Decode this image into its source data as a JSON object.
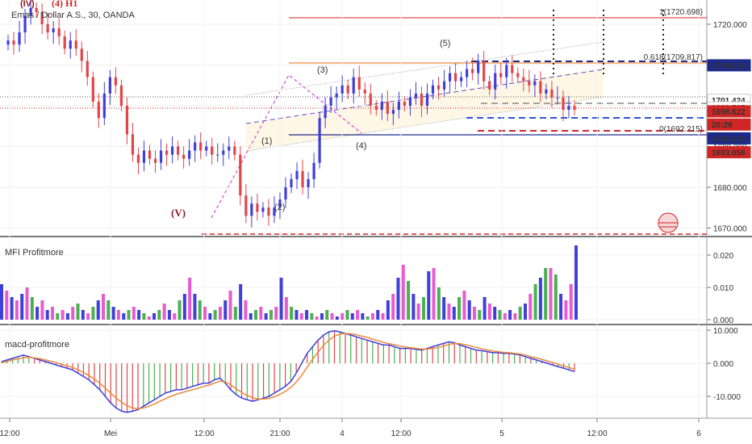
{
  "header": {
    "symbol_title": "Emas / Dollar A.S., 30, OANDA",
    "wave_labels": [
      "(IV)",
      "(4) H1"
    ]
  },
  "colors": {
    "up": "#3f3fd9",
    "down": "#e0454a",
    "magenta": "#d84dd8",
    "green": "#4caf50",
    "orange": "#f0883a",
    "blue": "#2f52d6",
    "navy": "#1e2a8a",
    "red": "#d02626",
    "dark_red": "#8b1a2a"
  },
  "time_axis": [
    "12:00",
    "Mei",
    "12:00",
    "21:00",
    "4",
    "12:00",
    "5",
    "12:00",
    "6"
  ],
  "chart_data": [
    {
      "type": "candlestick",
      "title": "Emas / Dollar A.S., 30, OANDA",
      "ylim": [
        1666,
        1727
      ],
      "yticks": [
        1670,
        1680,
        1690,
        1700,
        1710,
        1720
      ],
      "ytick_labels": [
        "1670.000",
        "1680.000",
        "1690.000",
        "1700.000",
        "1710.000",
        "1720.000"
      ],
      "candles_close": [
        1716,
        1715,
        1718,
        1722,
        1724,
        1723,
        1720,
        1718,
        1719,
        1717,
        1714,
        1716,
        1714,
        1711,
        1707,
        1701,
        1697,
        1703,
        1707,
        1705,
        1700,
        1693,
        1688,
        1686,
        1689,
        1687,
        1686,
        1689,
        1688,
        1690,
        1688,
        1687,
        1689,
        1691,
        1689,
        1690,
        1688,
        1688,
        1689,
        1690,
        1688,
        1678,
        1673,
        1676,
        1674,
        1675,
        1673,
        1675,
        1677,
        1680,
        1682,
        1684,
        1680,
        1682,
        1686,
        1697,
        1700,
        1702,
        1703,
        1705,
        1703,
        1707,
        1704,
        1703,
        1700,
        1699,
        1701,
        1698,
        1699,
        1701,
        1700,
        1702,
        1703,
        1700,
        1703,
        1705,
        1704,
        1706,
        1708,
        1706,
        1707,
        1709,
        1708,
        1711,
        1706,
        1704,
        1708,
        1707,
        1710,
        1708,
        1707,
        1706,
        1705,
        1706,
        1703,
        1704,
        1702,
        1702,
        1699,
        1700,
        1699
      ],
      "price_labels": [
        {
          "text": "1709.916",
          "price": 1709.916,
          "bg": "#1e2a8a",
          "fg": "#ffffff"
        },
        {
          "text": "1701.424",
          "price": 1701.424,
          "bg": "#ffffff",
          "fg": "#000000"
        },
        {
          "text": "1699.567",
          "price": 1699.567,
          "bg": "#ffffff",
          "fg": "#555555"
        },
        {
          "text": "1698.622",
          "price": 1698.622,
          "bg": "#d02626",
          "fg": "#ffffff"
        },
        {
          "text": "20:29",
          "price": 1695.4,
          "bg": "#d02626",
          "fg": "#ffffff"
        },
        {
          "text": "1696.210",
          "price": 1692.0,
          "bg": "#1e2a8a",
          "fg": "#ffffff"
        },
        {
          "text": "1693.058",
          "price": 1688.6,
          "bg": "#d02626",
          "fg": "#ffffff"
        }
      ],
      "fib_levels": [
        {
          "label": "1(1720.698)",
          "price": 1720.698
        },
        {
          "label": "0.618(1709.817)",
          "price": 1709.817
        },
        {
          "label": "0(1692.215)",
          "price": 1692.215
        }
      ],
      "annotations": [
        "(V)",
        "(1)",
        "(2)",
        "(3)",
        "(4)",
        "(5)"
      ]
    },
    {
      "type": "bar",
      "title": "MFI Profitmore",
      "ylim": [
        0,
        0.024
      ],
      "yticks": [
        0,
        0.01,
        0.02
      ],
      "ytick_labels": [
        "0.000",
        "0.010",
        "0.020"
      ],
      "values": [
        0.011,
        0.009,
        0.007,
        0.006,
        0.008,
        0.01,
        0.007,
        0.004,
        0.006,
        0.003,
        0.004,
        0.002,
        0.003,
        0.002,
        0.004,
        0.005,
        0.003,
        0.002,
        0.004,
        0.006,
        0.008,
        0.006,
        0.004,
        0.003,
        0.002,
        0.003,
        0.004,
        0.003,
        0.002,
        0.001,
        0.002,
        0.003,
        0.005,
        0.003,
        0.002,
        0.006,
        0.008,
        0.013,
        0.008,
        0.006,
        0.004,
        0.002,
        0.003,
        0.004,
        0.006,
        0.009,
        0.004,
        0.011,
        0.006,
        0.002,
        0.003,
        0.004,
        0.002,
        0.003,
        0.004,
        0.013,
        0.007,
        0.004,
        0.003,
        0.002,
        0.003,
        0.002,
        0.001,
        0.002,
        0.003,
        0.002,
        0.001,
        0.002,
        0.003,
        0.002,
        0.003,
        0.002,
        0.001,
        0.002,
        0.003,
        0.002,
        0.006,
        0.008,
        0.013,
        0.017,
        0.012,
        0.008,
        0.005,
        0.007,
        0.015,
        0.016,
        0.01,
        0.007,
        0.005,
        0.004,
        0.007,
        0.009,
        0.006,
        0.004,
        0.003,
        0.007,
        0.005,
        0.004,
        0.003,
        0.002,
        0.003,
        0.002,
        0.004,
        0.005,
        0.008,
        0.011,
        0.013,
        0.016,
        0.016,
        0.014,
        0.008,
        0.006,
        0.011,
        0.023
      ],
      "colors": [
        "#3f3fd9",
        "#e85bd0",
        "#3f3fd9",
        "#e85bd0",
        "#3f3fd9",
        "#e85bd0",
        "#4caf50",
        "#3f3fd9",
        "#e85bd0",
        "#3f3fd9",
        "#e85bd0",
        "#4caf50",
        "#e85bd0",
        "#3f3fd9",
        "#e85bd0",
        "#4caf50",
        "#3f3fd9",
        "#e85bd0",
        "#4caf50",
        "#3f3fd9",
        "#e85bd0",
        "#4caf50",
        "#3f3fd9",
        "#e85bd0",
        "#3f3fd9",
        "#4caf50",
        "#e85bd0",
        "#3f3fd9",
        "#4caf50",
        "#e85bd0",
        "#3f3fd9",
        "#4caf50",
        "#e85bd0",
        "#3f3fd9",
        "#e85bd0",
        "#4caf50",
        "#3f3fd9",
        "#e85bd0",
        "#3f3fd9",
        "#4caf50",
        "#e85bd0",
        "#3f3fd9",
        "#4caf50",
        "#e85bd0",
        "#3f3fd9",
        "#e85bd0",
        "#4caf50",
        "#3f3fd9",
        "#e85bd0",
        "#3f3fd9",
        "#4caf50",
        "#e85bd0",
        "#3f3fd9",
        "#4caf50",
        "#e85bd0",
        "#3f3fd9",
        "#e85bd0",
        "#4caf50",
        "#3f3fd9",
        "#e85bd0",
        "#3f3fd9",
        "#4caf50",
        "#e85bd0",
        "#3f3fd9",
        "#4caf50",
        "#e85bd0",
        "#3f3fd9",
        "#e85bd0",
        "#4caf50",
        "#3f3fd9",
        "#e85bd0",
        "#3f3fd9",
        "#4caf50",
        "#e85bd0",
        "#3f3fd9",
        "#e85bd0",
        "#3f3fd9",
        "#e85bd0",
        "#3f3fd9",
        "#e85bd0",
        "#4caf50",
        "#3f3fd9",
        "#e85bd0",
        "#4caf50",
        "#3f3fd9",
        "#e85bd0",
        "#4caf50",
        "#3f3fd9",
        "#e85bd0",
        "#3f3fd9",
        "#4caf50",
        "#e85bd0",
        "#3f3fd9",
        "#e85bd0",
        "#4caf50",
        "#3f3fd9",
        "#e85bd0",
        "#3f3fd9",
        "#4caf50",
        "#e85bd0",
        "#3f3fd9",
        "#e85bd0",
        "#4caf50",
        "#3f3fd9",
        "#e85bd0",
        "#4caf50",
        "#3f3fd9",
        "#4caf50",
        "#e85bd0",
        "#4caf50",
        "#3f3fd9",
        "#e85bd0",
        "#e85bd0",
        "#3f3fd9"
      ]
    },
    {
      "type": "line",
      "title": "macd-profitmore",
      "ylim": [
        -15,
        11
      ],
      "yticks": [
        -10,
        0,
        10
      ],
      "ytick_labels": [
        "-10.000",
        "0.000",
        "10.000"
      ],
      "series": [
        {
          "values": [
            0.5,
            1,
            1.5,
            2,
            2.5,
            2,
            1.5,
            1,
            0.5,
            0,
            -0.5,
            -1,
            -1.5,
            -2,
            -3,
            -4,
            -5,
            -6.5,
            -8,
            -10,
            -12,
            -13.5,
            -14.5,
            -14.8,
            -14.5,
            -14,
            -13,
            -12,
            -11,
            -10,
            -9,
            -8.5,
            -8,
            -8,
            -7.5,
            -7,
            -6.5,
            -6,
            -6,
            -5,
            -4.5,
            -6,
            -8,
            -9.5,
            -10.5,
            -11,
            -11.5,
            -11,
            -10.5,
            -10,
            -9,
            -8,
            -7,
            -5.5,
            -3,
            0,
            3,
            5,
            7,
            8.5,
            9.5,
            9.8,
            9.5,
            9,
            8.5,
            8,
            7.5,
            7,
            6.5,
            6,
            5.5,
            5.5,
            5,
            4.5,
            4.5,
            4.5,
            4.2,
            4,
            4.5,
            5,
            5.5,
            6,
            6.5,
            6.2,
            5.5,
            5,
            4.5,
            4,
            3.8,
            3.5,
            3.2,
            3.2,
            3,
            3,
            2.8,
            2.5,
            2,
            1.5,
            1,
            0.5,
            0,
            -0.5,
            -1,
            -1.5,
            -2,
            -2.5
          ]
        },
        {
          "values": [
            0.2,
            0.5,
            1,
            1.3,
            1.7,
            1.8,
            1.6,
            1.4,
            1,
            0.6,
            0.2,
            -0.3,
            -0.8,
            -1.3,
            -2,
            -2.8,
            -3.7,
            -4.8,
            -6,
            -7.5,
            -9,
            -10.5,
            -11.8,
            -12.8,
            -13.5,
            -13.7,
            -13.5,
            -13,
            -12.3,
            -11.5,
            -10.7,
            -10,
            -9.4,
            -8.9,
            -8.4,
            -8,
            -7.5,
            -7,
            -6.6,
            -6,
            -5.4,
            -5.6,
            -6.5,
            -7.7,
            -8.8,
            -9.7,
            -10.4,
            -10.8,
            -10.8,
            -10.6,
            -10.1,
            -9.4,
            -8.5,
            -7.3,
            -5.7,
            -3.6,
            -1.2,
            1.2,
            3.4,
            5.4,
            7,
            8.2,
            8.8,
            9,
            8.9,
            8.6,
            8.2,
            7.8,
            7.3,
            6.8,
            6.3,
            5.9,
            5.6,
            5.2,
            4.9,
            4.7,
            4.5,
            4.3,
            4.3,
            4.5,
            4.8,
            5.2,
            5.7,
            6,
            5.9,
            5.6,
            5.2,
            4.8,
            4.4,
            4,
            3.7,
            3.5,
            3.3,
            3.2,
            3,
            2.8,
            2.5,
            2,
            1.6,
            1.2,
            0.7,
            0.2,
            -0.3,
            -0.8,
            -1.3,
            -1.8
          ]
        }
      ]
    }
  ]
}
